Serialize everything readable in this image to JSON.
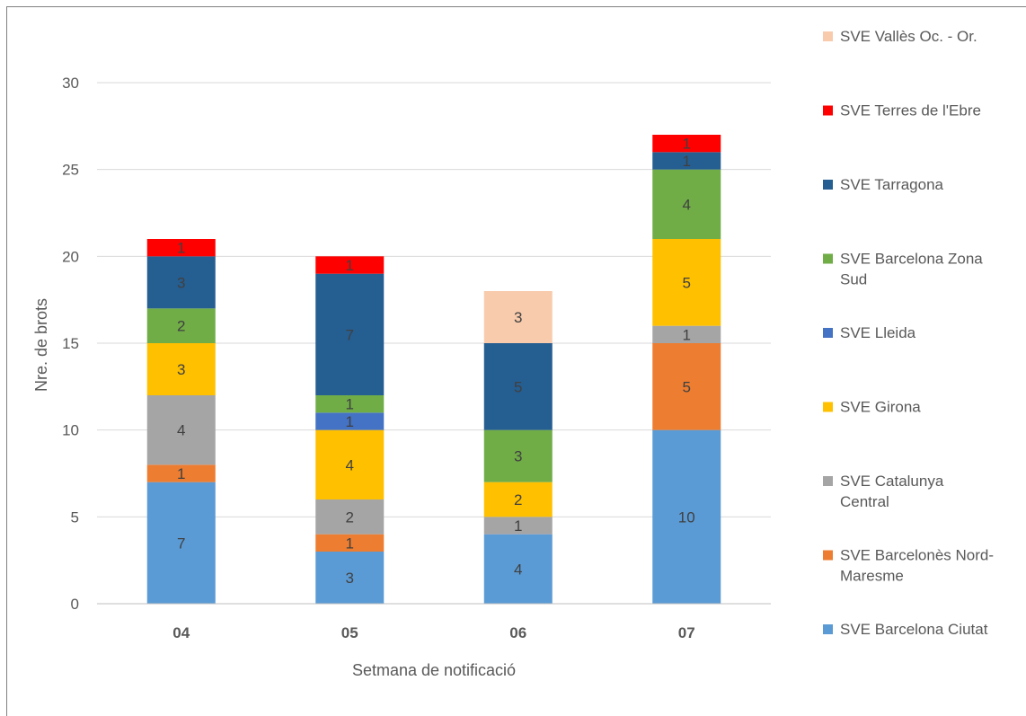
{
  "chart_data": {
    "type": "bar",
    "stacked": true,
    "title": "",
    "xlabel": "Setmana de notificació",
    "ylabel": "Nre. de brots",
    "ylim": [
      0,
      30
    ],
    "yticks": [
      0,
      5,
      10,
      15,
      20,
      25,
      30
    ],
    "grid": true,
    "legend_position": "right",
    "categories": [
      "04",
      "05",
      "06",
      "07"
    ],
    "series": [
      {
        "name": "SVE Barcelona Ciutat",
        "color": "#5b9bd5",
        "values": [
          7,
          3,
          4,
          10
        ]
      },
      {
        "name": "SVE Barcelonès Nord-Maresme",
        "color": "#ed7d31",
        "values": [
          1,
          1,
          0,
          5
        ]
      },
      {
        "name": "SVE Catalunya Central",
        "color": "#a5a5a5",
        "values": [
          4,
          2,
          1,
          1
        ]
      },
      {
        "name": "SVE Girona",
        "color": "#ffc000",
        "values": [
          3,
          4,
          2,
          5
        ]
      },
      {
        "name": "SVE Lleida",
        "color": "#4472c4",
        "values": [
          0,
          1,
          0,
          0
        ]
      },
      {
        "name": "SVE Barcelona Zona Sud",
        "color": "#70ad47",
        "values": [
          2,
          1,
          3,
          4
        ]
      },
      {
        "name": "SVE Tarragona",
        "color": "#255e91",
        "values": [
          3,
          7,
          5,
          1
        ]
      },
      {
        "name": "SVE Terres de l'Ebre",
        "color": "#ff0000",
        "values": [
          1,
          1,
          0,
          1
        ]
      },
      {
        "name": "SVE Vallès Oc. - Or.",
        "color": "#f8cbad",
        "values": [
          0,
          0,
          3,
          0
        ]
      }
    ]
  }
}
